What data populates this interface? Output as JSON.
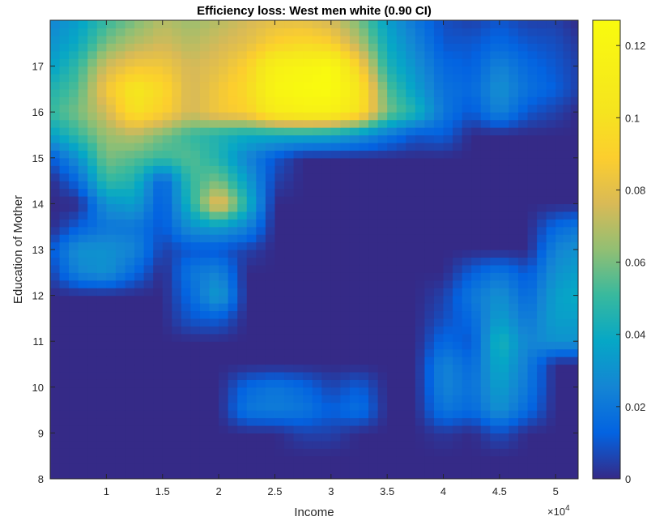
{
  "chart_data": {
    "type": "heatmap",
    "title": "Efficiency loss:  West men white (0.90 CI)",
    "xlabel": "Income",
    "ylabel": "Education of Mother",
    "x_exponent_label": "×10",
    "x_exponent_power": "4",
    "xlim": [
      5000,
      52000
    ],
    "ylim": [
      8,
      18
    ],
    "xticks": [
      10000,
      15000,
      20000,
      25000,
      30000,
      35000,
      40000,
      45000,
      50000
    ],
    "xtick_labels": [
      "1",
      "1.5",
      "2",
      "2.5",
      "3",
      "3.5",
      "4",
      "4.5",
      "5"
    ],
    "yticks": [
      8,
      9,
      10,
      11,
      12,
      13,
      14,
      15,
      16,
      17
    ],
    "ytick_labels": [
      "8",
      "9",
      "10",
      "11",
      "12",
      "13",
      "14",
      "15",
      "16",
      "17"
    ],
    "colorbar": {
      "range": [
        0,
        0.127
      ],
      "ticks": [
        0,
        0.02,
        0.04,
        0.06,
        0.08,
        0.1,
        0.12
      ],
      "tick_labels": [
        "0",
        "0.02",
        "0.04",
        "0.06",
        "0.08",
        "0.1",
        "0.12"
      ],
      "colormap": "parula"
    },
    "x": [
      5000,
      7500,
      10000,
      12500,
      15000,
      17500,
      20000,
      22500,
      25000,
      27500,
      30000,
      32500,
      35000,
      37500,
      40000,
      42500,
      45000,
      47500,
      50000,
      52000
    ],
    "y": [
      8,
      8.5,
      9,
      9.5,
      10,
      10.5,
      11,
      11.5,
      12,
      12.5,
      13,
      13.5,
      14,
      14.5,
      15,
      15.5,
      16,
      16.5,
      17,
      17.5,
      18
    ],
    "z": [
      [
        0,
        0,
        0,
        0,
        0,
        0,
        0,
        0,
        0,
        0,
        0,
        0,
        0,
        0,
        0,
        0,
        0,
        0,
        0,
        0
      ],
      [
        0,
        0,
        0,
        0,
        0,
        0,
        0,
        0,
        0,
        0,
        0,
        0,
        0,
        0,
        0,
        0,
        0,
        0,
        0,
        0
      ],
      [
        0,
        0,
        0,
        0,
        0,
        0,
        0,
        0,
        0,
        0.005,
        0.005,
        0,
        0,
        0,
        0.003,
        0,
        0.008,
        0,
        0,
        0
      ],
      [
        0,
        0,
        0,
        0,
        0,
        0,
        0,
        0.02,
        0.022,
        0.02,
        0.012,
        0.018,
        0,
        0,
        0.02,
        0.015,
        0.03,
        0.015,
        0,
        0
      ],
      [
        0,
        0,
        0,
        0,
        0,
        0,
        0,
        0.015,
        0.02,
        0.015,
        0.006,
        0.012,
        0,
        0,
        0.025,
        0.018,
        0.035,
        0.02,
        0,
        0
      ],
      [
        0,
        0,
        0,
        0,
        0,
        0,
        0,
        0,
        0,
        0,
        0,
        0,
        0,
        0,
        0.025,
        0.015,
        0.04,
        0.022,
        0,
        0
      ],
      [
        0,
        0,
        0,
        0,
        0,
        0,
        0,
        0,
        0,
        0,
        0,
        0,
        0,
        0,
        0.015,
        0.01,
        0.045,
        0.025,
        0.03,
        0.03
      ],
      [
        0,
        0,
        0,
        0,
        0,
        0.01,
        0.012,
        0,
        0,
        0,
        0,
        0,
        0,
        0,
        0.008,
        0.015,
        0.035,
        0.02,
        0.035,
        0.035
      ],
      [
        0,
        0,
        0,
        0,
        0,
        0.015,
        0.035,
        0,
        0,
        0,
        0,
        0,
        0,
        0,
        0.005,
        0.02,
        0.03,
        0.015,
        0.035,
        0.04
      ],
      [
        0.005,
        0.025,
        0.03,
        0.015,
        0,
        0.02,
        0.025,
        0,
        0,
        0,
        0,
        0,
        0,
        0,
        0,
        0.012,
        0.02,
        0.01,
        0.03,
        0.035
      ],
      [
        0.01,
        0.03,
        0.03,
        0.025,
        0.005,
        0.01,
        0.01,
        0.005,
        0,
        0,
        0,
        0,
        0,
        0,
        0,
        0,
        0,
        0,
        0.025,
        0.03
      ],
      [
        0,
        0.012,
        0.02,
        0.02,
        0.01,
        0.03,
        0.035,
        0.025,
        0,
        0,
        0,
        0,
        0,
        0,
        0,
        0,
        0,
        0,
        0.015,
        0.02
      ],
      [
        0,
        0,
        0.03,
        0.035,
        0.01,
        0.045,
        0.085,
        0.045,
        0,
        0,
        0,
        0,
        0,
        0,
        0,
        0,
        0,
        0,
        0,
        0
      ],
      [
        0,
        0.015,
        0.05,
        0.045,
        0.012,
        0.05,
        0.06,
        0.035,
        0.005,
        0,
        0,
        0,
        0,
        0,
        0,
        0,
        0,
        0,
        0,
        0
      ],
      [
        0.01,
        0.03,
        0.06,
        0.055,
        0.05,
        0.055,
        0.045,
        0.025,
        0.01,
        0,
        0,
        0,
        0,
        0,
        0,
        0,
        0,
        0,
        0,
        0
      ],
      [
        0.035,
        0.05,
        0.065,
        0.07,
        0.06,
        0.05,
        0.045,
        0.04,
        0.04,
        0.04,
        0.038,
        0.03,
        0.02,
        0.01,
        0.012,
        0,
        0,
        0,
        0,
        0
      ],
      [
        0.05,
        0.06,
        0.075,
        0.1,
        0.09,
        0.075,
        0.085,
        0.09,
        0.11,
        0.115,
        0.115,
        0.1,
        0.06,
        0.045,
        0.02,
        0.01,
        0.025,
        0.01,
        0.005,
        0
      ],
      [
        0.045,
        0.055,
        0.085,
        0.105,
        0.095,
        0.075,
        0.085,
        0.095,
        0.12,
        0.125,
        0.127,
        0.105,
        0.055,
        0.035,
        0.018,
        0.015,
        0.03,
        0.018,
        0.012,
        0.005
      ],
      [
        0.035,
        0.05,
        0.075,
        0.085,
        0.085,
        0.075,
        0.08,
        0.09,
        0.115,
        0.12,
        0.125,
        0.09,
        0.045,
        0.03,
        0.015,
        0.012,
        0.025,
        0.015,
        0.01,
        0.005
      ],
      [
        0.03,
        0.04,
        0.06,
        0.07,
        0.075,
        0.07,
        0.075,
        0.08,
        0.09,
        0.095,
        0.09,
        0.07,
        0.04,
        0.025,
        0.01,
        0.01,
        0.015,
        0.01,
        0.008,
        0.003
      ],
      [
        0.025,
        0.035,
        0.05,
        0.06,
        0.07,
        0.065,
        0.07,
        0.075,
        0.08,
        0.08,
        0.075,
        0.06,
        0.035,
        0.02,
        0.008,
        0.005,
        0.01,
        0.005,
        0.005,
        0
      ]
    ]
  }
}
